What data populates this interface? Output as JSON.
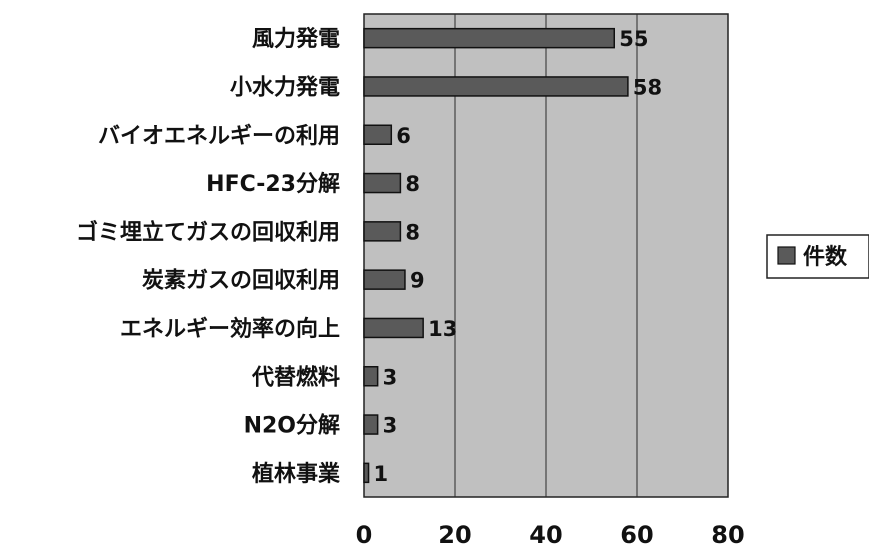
{
  "chart_data": {
    "type": "bar",
    "orientation": "horizontal",
    "categories": [
      "風力発電",
      "小水力発電",
      "バイオエネルギーの利用",
      "HFC-23分解",
      "ゴミ埋立てガスの回収利用",
      "炭素ガスの回収利用",
      "エネルギー効率の向上",
      "代替燃料",
      "N2O分解",
      "植林事業"
    ],
    "series": [
      {
        "name": "件数",
        "values": [
          55,
          58,
          6,
          8,
          8,
          9,
          13,
          3,
          3,
          1
        ]
      }
    ],
    "xlim": [
      0,
      80
    ],
    "x_ticks": [
      "0",
      "20",
      "40",
      "60",
      "80"
    ],
    "grid": true,
    "legend": "right",
    "colors": {
      "bar": "#5a5a5a",
      "plot_background": "#c0c0c0",
      "gridline": "#2a2a2a"
    }
  }
}
